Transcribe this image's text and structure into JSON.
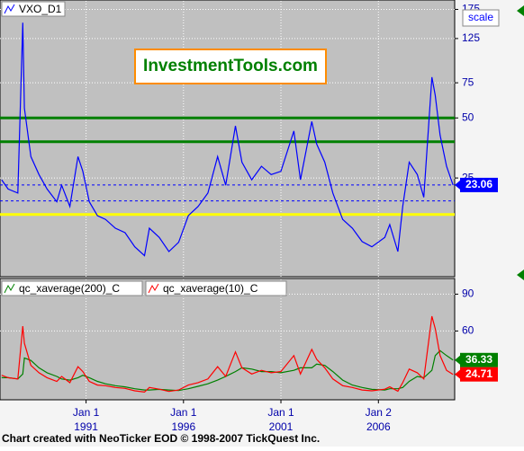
{
  "chart_data": [
    {
      "type": "line",
      "log_scale": true,
      "grid": true,
      "x": [
        "1986-09",
        "1987-01",
        "1987-07",
        "1987-10",
        "1987-11",
        "1988-03",
        "1988-08",
        "1989-01",
        "1989-07",
        "1989-10",
        "1990-03",
        "1990-08",
        "1990-11",
        "1991-03",
        "1991-08",
        "1992-01",
        "1992-07",
        "1993-01",
        "1993-07",
        "1994-01",
        "1994-04",
        "1994-10",
        "1995-04",
        "1995-10",
        "1996-04",
        "1996-10",
        "1997-04",
        "1997-10",
        "1998-03",
        "1998-09",
        "1999-01",
        "1999-07",
        "2000-01",
        "2000-07",
        "2001-01",
        "2001-09",
        "2002-01",
        "2002-08",
        "2002-11",
        "2003-04",
        "2003-09",
        "2004-03",
        "2004-09",
        "2005-03",
        "2005-09",
        "2006-05",
        "2006-08",
        "2007-01",
        "2007-04",
        "2007-08",
        "2008-01",
        "2008-05",
        "2008-10",
        "2008-12",
        "2009-03",
        "2009-07",
        "2009-11"
      ],
      "series": [
        {
          "name": "VXO_D1",
          "color": "#0000ff",
          "values": [
            24.5,
            22,
            21,
            150,
            56,
            32,
            26,
            22,
            19,
            23,
            18,
            32,
            27,
            19,
            16.2,
            15.5,
            14,
            13.3,
            11.3,
            10.2,
            14,
            12.6,
            10.7,
            11.9,
            16.2,
            18,
            21,
            32,
            23,
            45.6,
            30,
            24.5,
            28.6,
            26,
            27,
            43,
            24.5,
            48,
            37,
            30,
            21,
            15.5,
            14,
            12,
            11.3,
            12.6,
            14.6,
            10.7,
            18,
            30,
            26,
            20,
            80,
            65,
            41,
            28.6,
            23.06
          ]
        }
      ],
      "xlim": [
        "1986-08",
        "2009-12"
      ],
      "ylim": [
        8,
        193
      ],
      "yticks": [
        25,
        50,
        75,
        125,
        175
      ],
      "reference_lines": [
        {
          "value": 50,
          "color": "#008000"
        },
        {
          "value": 38,
          "color": "#008000"
        },
        {
          "value": 16.4,
          "color": "#ffff00"
        },
        {
          "value": 19.2,
          "color": "#0000ff",
          "dashed": true
        }
      ]
    },
    {
      "type": "line",
      "grid": true,
      "x": [
        "1986-09",
        "1987-01",
        "1987-07",
        "1987-10",
        "1987-11",
        "1988-03",
        "1988-08",
        "1989-01",
        "1989-07",
        "1989-10",
        "1990-03",
        "1990-08",
        "1990-11",
        "1991-03",
        "1991-08",
        "1992-01",
        "1992-07",
        "1993-01",
        "1993-07",
        "1994-01",
        "1994-04",
        "1994-10",
        "1995-04",
        "1995-10",
        "1996-04",
        "1996-10",
        "1997-04",
        "1997-10",
        "1998-03",
        "1998-09",
        "1999-01",
        "1999-07",
        "2000-01",
        "2000-07",
        "2001-01",
        "2001-09",
        "2002-01",
        "2002-08",
        "2002-11",
        "2003-04",
        "2003-09",
        "2004-03",
        "2004-09",
        "2005-03",
        "2005-09",
        "2006-05",
        "2006-08",
        "2007-01",
        "2007-04",
        "2007-08",
        "2008-01",
        "2008-05",
        "2008-10",
        "2008-12",
        "2009-03",
        "2009-07",
        "2009-11"
      ],
      "series": [
        {
          "name": "qc_xaverage(200)_C",
          "color": "#008000",
          "values": [
            22,
            22,
            21,
            25,
            38,
            36,
            30,
            26,
            23,
            21,
            20,
            22,
            24,
            22,
            19,
            17,
            15.5,
            14.5,
            13,
            12,
            12,
            12.5,
            12,
            11.5,
            13,
            15,
            17,
            20,
            23,
            27,
            30,
            29,
            27,
            27,
            26,
            28,
            30,
            30,
            33,
            32,
            27,
            20,
            16,
            14,
            12.5,
            12,
            13,
            13,
            14,
            19,
            23,
            22,
            28,
            40,
            44,
            40,
            36.33
          ]
        },
        {
          "name": "qc_xaverage(10)_C",
          "color": "#ff0000",
          "values": [
            24,
            22,
            21,
            64,
            50,
            32,
            26,
            22,
            19,
            23,
            18,
            31,
            27,
            19,
            16,
            15.5,
            14,
            13.3,
            11.3,
            10.3,
            14,
            12.6,
            10.8,
            12,
            16,
            18,
            21,
            31,
            23,
            43,
            30,
            25,
            28,
            26,
            27,
            40,
            25,
            45,
            37,
            30,
            21,
            15.5,
            14,
            12,
            11.3,
            12.6,
            14.5,
            11,
            18,
            29,
            26,
            21,
            72,
            62,
            40,
            28,
            24.71
          ]
        }
      ],
      "xlim": [
        "1986-08",
        "2009-12"
      ],
      "ylim": [
        4,
        102
      ],
      "yticks": [
        60,
        90
      ],
      "xticks": [
        {
          "value": "1991-01-01",
          "label": [
            "Jan 1",
            "1991"
          ]
        },
        {
          "value": "1996-01-01",
          "label": [
            "Jan 1",
            "1996"
          ]
        },
        {
          "value": "2001-01-01",
          "label": [
            "Jan 1",
            "2001"
          ]
        },
        {
          "value": "2006-01-02",
          "label": [
            "Jan 2",
            "2006"
          ]
        }
      ]
    }
  ],
  "watermark": "InvestmentTools.com",
  "scale_button": "scale",
  "footer": "Chart created with NeoTicker EOD © 1998-2007 TickQuest Inc."
}
